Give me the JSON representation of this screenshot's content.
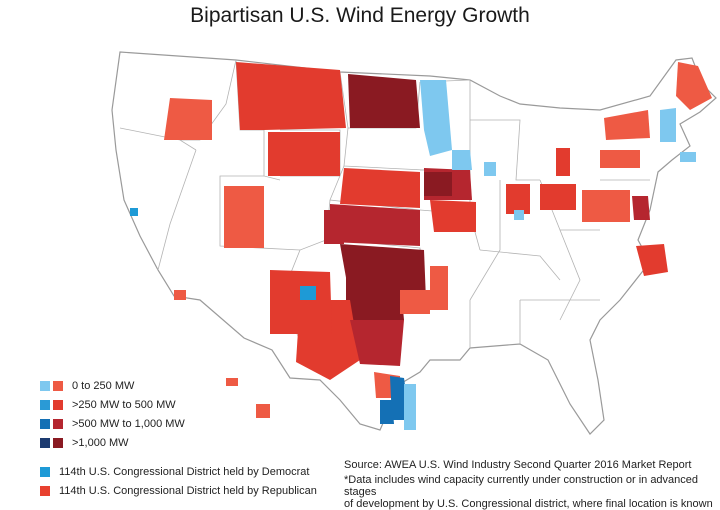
{
  "title": "Bipartisan U.S. Wind Energy Growth",
  "legend": {
    "ranges": [
      {
        "label": "0 to 250 MW",
        "dem_color": "#7ec8ef",
        "rep_color": "#ee5a44"
      },
      {
        "label": ">250 MW to 500 MW",
        "dem_color": "#2a9ad6",
        "rep_color": "#e23b2e"
      },
      {
        "label": ">500 MW to 1,000 MW",
        "dem_color": "#1470b5",
        "rep_color": "#b5262f"
      },
      {
        "label": ">1,000 MW",
        "dem_color": "#1d3b70",
        "rep_color": "#8a1a22"
      }
    ],
    "party": [
      {
        "label": "114th U.S. Congressional District held by Democrat",
        "color": "#1e9ad6"
      },
      {
        "label": "114th U.S. Congressional District held by Republican",
        "color": "#e8412f"
      }
    ]
  },
  "source": "Source: AWEA U.S. Wind Industry Second Quarter 2016 Market Report",
  "note_line1": "*Data includes wind capacity currently under construction or in advanced stages",
  "note_line2": "of development by U.S. Congressional district, where final location is known",
  "colors": {
    "land": "#ffffff",
    "border": "#9a9a9a",
    "rep_light": "#ee5a44",
    "rep_mid": "#e23b2e",
    "rep_dark": "#b5262f",
    "rep_darkest": "#8a1a22",
    "dem_light": "#7ec8ef",
    "dem_mid": "#2a9ad6",
    "dem_dark": "#1470b5"
  }
}
